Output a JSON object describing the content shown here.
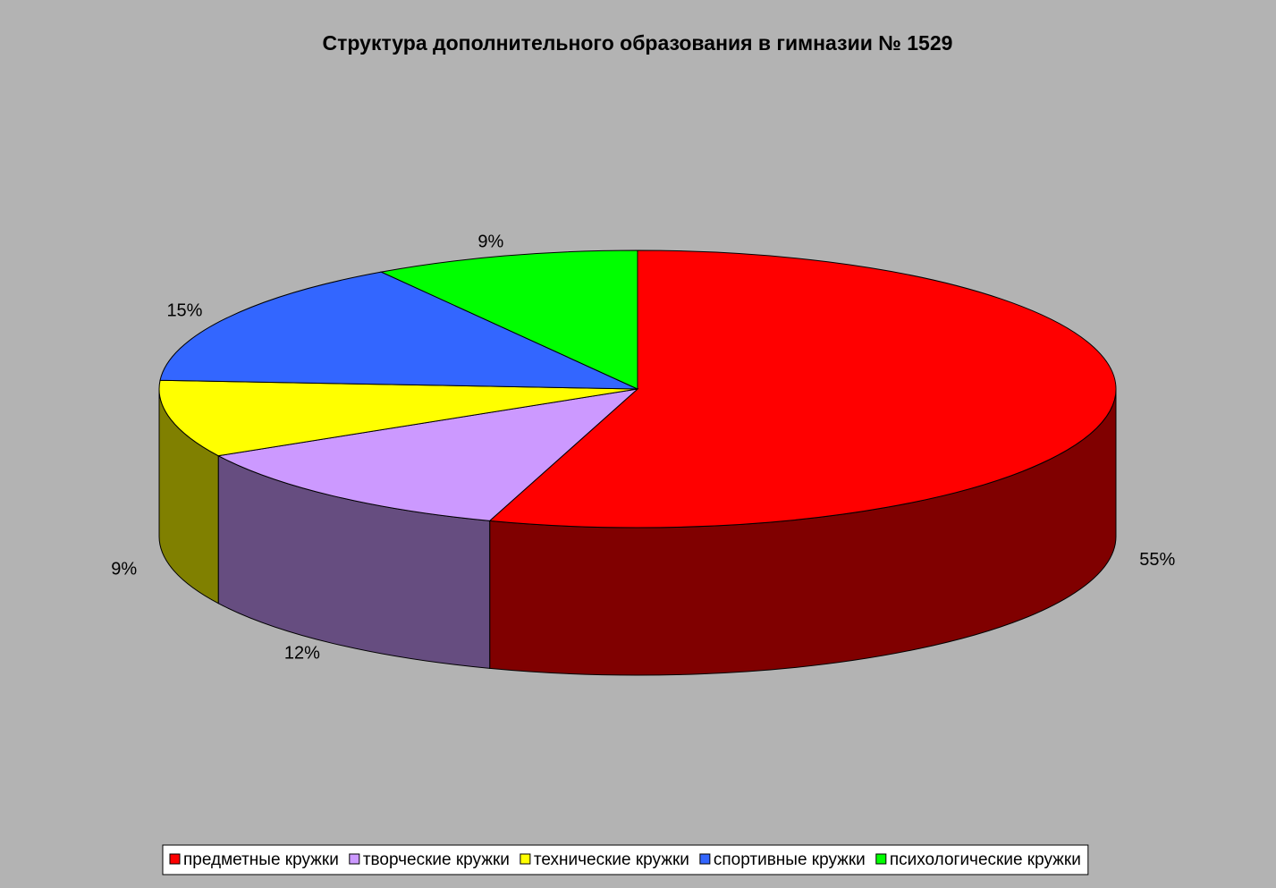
{
  "chart_data": {
    "type": "pie",
    "title": "Структура дополнительного образования в гимназии № 1529",
    "categories": [
      "предметные кружки",
      "творческие кружки",
      "технические кружки",
      "спортивные кружки",
      "психологические кружки"
    ],
    "values": [
      55,
      12,
      9,
      15,
      9
    ],
    "value_labels": [
      "55%",
      "12%",
      "9%",
      "15%",
      "9%"
    ],
    "colors": [
      "#ff0000",
      "#cc99ff",
      "#ffff00",
      "#3366ff",
      "#00ff00"
    ],
    "legend": "bottom"
  }
}
